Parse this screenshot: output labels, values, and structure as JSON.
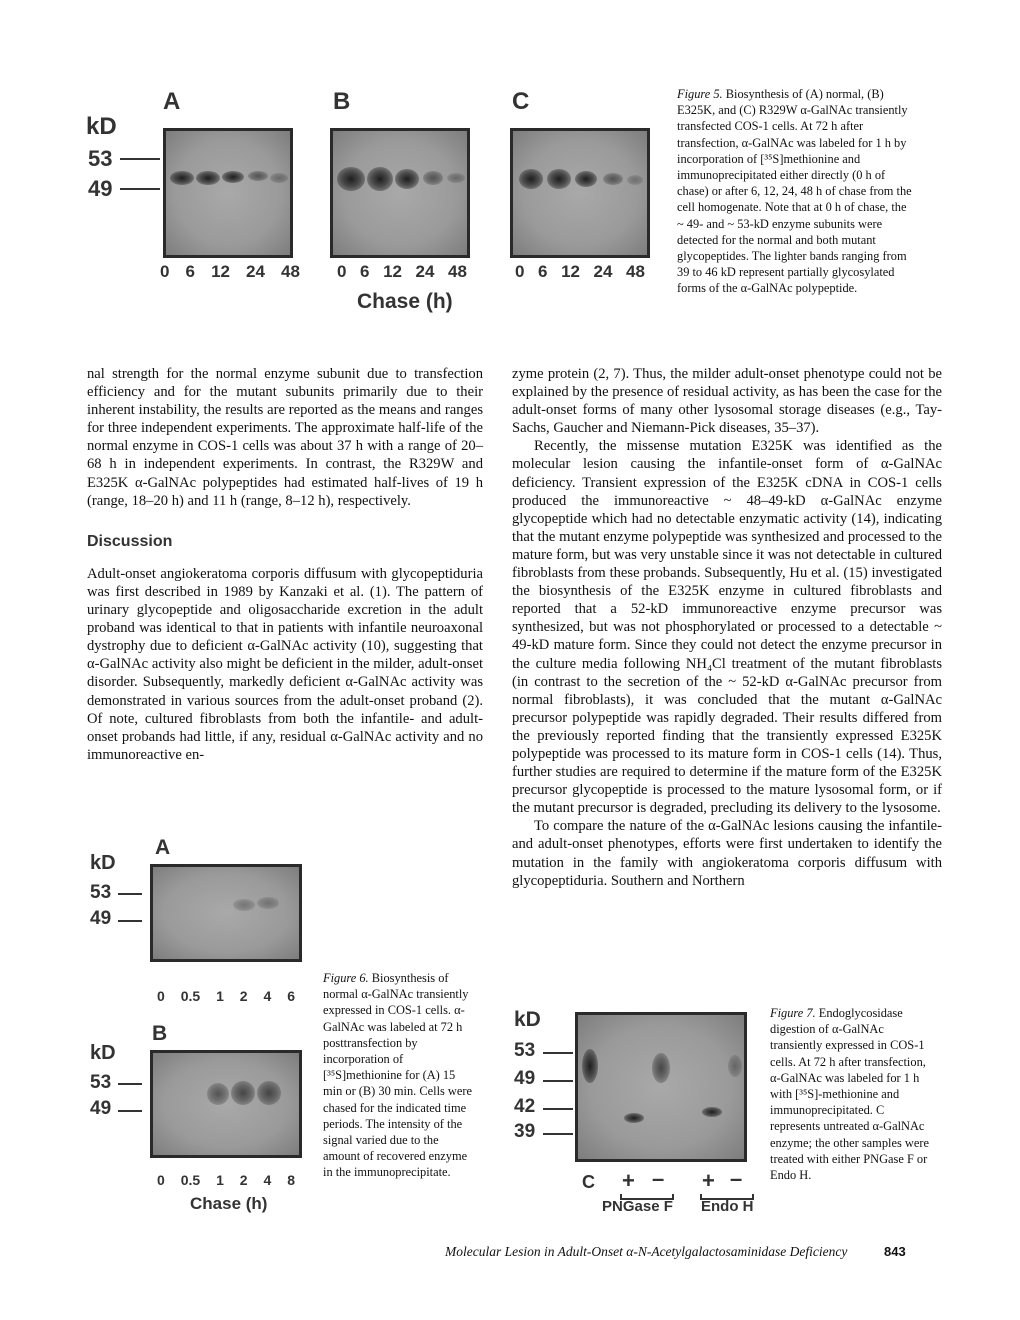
{
  "figure5": {
    "panels": [
      "A",
      "B",
      "C"
    ],
    "kd_label": "kD",
    "markers": [
      "53",
      "49"
    ],
    "lanes": [
      "0",
      "6",
      "12",
      "24",
      "48"
    ],
    "xlabel": "Chase (h)",
    "caption_label": "Figure 5.",
    "caption": "Biosynthesis of (A) normal, (B) E325K, and (C) R329W α-GalNAc transiently transfected COS-1 cells. At 72 h after transfection, α-GalNAc was labeled for 1 h by incorporation of [³⁵S]methionine and immunoprecipitated either directly (0 h of chase) or after 6, 12, 24, 48 h of chase from the cell homogenate. Note that at 0 h of chase, the ~ 49- and ~ 53-kD enzyme subunits were detected for the normal and both mutant glycopeptides. The lighter bands ranging from 39 to 46 kD represent partially glycosylated forms of the α-GalNAc polypeptide."
  },
  "left_column": {
    "para1": "nal strength for the normal enzyme subunit due to transfection efficiency and for the mutant subunits primarily due to their inherent instability, the results are reported as the means and ranges for three independent experiments. The approximate half-life of the normal enzyme in COS-1 cells was about 37 h with a range of 20–68 h in independent experiments. In contrast, the R329W and E325K α-GalNAc polypeptides had estimated half-lives of 19 h (range, 18–20 h) and 11 h (range, 8–12 h), respectively.",
    "heading": "Discussion",
    "para2": "Adult-onset angiokeratoma corporis diffusum with glycopeptiduria was first described in 1989 by Kanzaki et al. (1). The pattern of urinary glycopeptide and oligosaccharide excretion in the adult proband was identical to that in patients with infantile neuroaxonal dystrophy due to deficient α-GalNAc activity (10), suggesting that α-GalNAc activity also might be deficient in the milder, adult-onset disorder. Subsequently, markedly deficient α-GalNAc activity was demonstrated in various sources from the adult-onset proband (2). Of note, cultured fibroblasts from both the infantile- and adult-onset probands had little, if any, residual α-GalNAc activity and no immunoreactive en-"
  },
  "right_column": {
    "para1": "zyme protein (2, 7). Thus, the milder adult-onset phenotype could not be explained by the presence of residual activity, as has been the case for the adult-onset forms of many other lysosomal storage diseases (e.g., Tay-Sachs, Gaucher and Niemann-Pick diseases, 35–37).",
    "para2": "Recently, the missense mutation E325K was identified as the molecular lesion causing the infantile-onset form of α-GalNAc deficiency. Transient expression of the E325K cDNA in COS-1 cells produced the immunoreactive ~ 48–49-kD α-GalNAc enzyme glycopeptide which had no detectable enzymatic activity (14), indicating that the mutant enzyme polypeptide was synthesized and processed to the mature form, but was very unstable since it was not detectable in cultured fibroblasts from these probands. Subsequently, Hu et al. (15) investigated the biosynthesis of the E325K enzyme in cultured fibroblasts and reported that a 52-kD immunoreactive enzyme precursor was synthesized, but was not phosphorylated or processed to a detectable ~ 49-kD mature form. Since they could not detect the enzyme precursor in the culture media following NH₄Cl treatment of the mutant fibroblasts (in contrast to the secretion of the ~ 52-kD α-GalNAc precursor from normal fibroblasts), it was concluded that the mutant α-GalNAc precursor polypeptide was rapidly degraded. Their results differed from the previously reported finding that the transiently expressed E325K polypeptide was processed to its mature form in COS-1 cells (14). Thus, further studies are required to determine if the mature form of the E325K precursor glycopeptide is processed to the mature lysosomal form, or if the mutant precursor is degraded, precluding its delivery to the lysosome.",
    "para3": "To compare the nature of the α-GalNAc lesions causing the infantile- and adult-onset phenotypes, efforts were first undertaken to identify the mutation in the family with angiokeratoma corporis diffusum with glycopeptiduria. Southern and Northern"
  },
  "figure6": {
    "panel_a": "A",
    "panel_b": "B",
    "kd_label": "kD",
    "markers": [
      "53",
      "49"
    ],
    "lanes_a": [
      "0",
      "0.5",
      "1",
      "2",
      "4",
      "6"
    ],
    "lanes_b": [
      "0",
      "0.5",
      "1",
      "2",
      "4",
      "8"
    ],
    "xlabel": "Chase (h)",
    "caption_label": "Figure 6.",
    "caption": "Biosynthesis of normal α-GalNAc transiently expressed in COS-1 cells. α-GalNAc was labeled at 72 h posttransfection by incorporation of [³⁵S]methionine for (A) 15 min or (B) 30 min. Cells were chased for the indicated time periods. The intensity of the signal varied due to the amount of recovered enzyme in the immunoprecipitate."
  },
  "figure7": {
    "kd_label": "kD",
    "markers": [
      "53",
      "49",
      "42",
      "39"
    ],
    "lane_c": "C",
    "lanes": [
      "+",
      "–",
      "+",
      "–"
    ],
    "groups": [
      "PNGase F",
      "Endo H"
    ],
    "caption_label": "Figure 7.",
    "caption": "Endoglycosidase digestion of α-GalNAc transiently expressed in COS-1 cells. At 72 h after transfection, α-GalNAc was labeled for 1 h with [³⁵S]-methionine and immunoprecipitated. C represents untreated α-GalNAc enzyme; the other samples were treated with either PNGase F or Endo H."
  },
  "footer": {
    "running_title": "Molecular Lesion in Adult-Onset α-N-Acetylgalactosaminidase Deficiency",
    "page_number": "843"
  }
}
